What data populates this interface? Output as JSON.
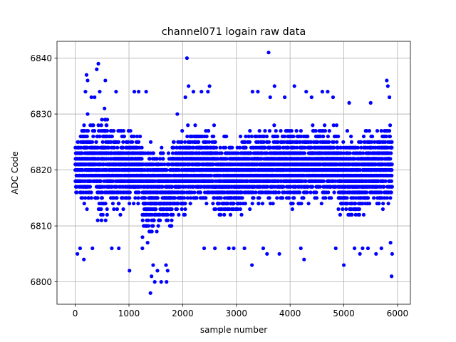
{
  "chart_data": {
    "type": "scatter",
    "title": "channel071 logain raw data",
    "xlabel": "sample number",
    "ylabel": "ADC Code",
    "xlim": [
      -340,
      6240
    ],
    "ylim": [
      6796,
      6843
    ],
    "xticks": [
      0,
      1000,
      2000,
      3000,
      4000,
      5000,
      6000
    ],
    "yticks": [
      6800,
      6810,
      6820,
      6830,
      6840
    ],
    "grid": true,
    "marker_color": "#0000ff",
    "n_points": 5900,
    "baseline_min": 6812,
    "baseline_max": 6827,
    "bands": [
      {
        "x": [
          0,
          100
        ],
        "range": [
          6814,
          6827
        ]
      },
      {
        "x": [
          100,
          400
        ],
        "range": [
          6812,
          6830
        ]
      },
      {
        "x": [
          400,
          600
        ],
        "range": [
          6809,
          6833
        ]
      },
      {
        "x": [
          600,
          900
        ],
        "range": [
          6811,
          6829
        ]
      },
      {
        "x": [
          900,
          1250
        ],
        "range": [
          6813,
          6828
        ]
      },
      {
        "x": [
          1250,
          1500
        ],
        "range": [
          6806,
          6827
        ]
      },
      {
        "x": [
          1500,
          1800
        ],
        "range": [
          6807,
          6826
        ]
      },
      {
        "x": [
          1800,
          2050
        ],
        "range": [
          6810,
          6828
        ]
      },
      {
        "x": [
          2050,
          2600
        ],
        "range": [
          6812,
          6829
        ]
      },
      {
        "x": [
          2600,
          3100
        ],
        "range": [
          6810,
          6827
        ]
      },
      {
        "x": [
          3100,
          4300
        ],
        "range": [
          6812,
          6829
        ]
      },
      {
        "x": [
          4300,
          4900
        ],
        "range": [
          6813,
          6829
        ]
      },
      {
        "x": [
          4900,
          5400
        ],
        "range": [
          6810,
          6828
        ]
      },
      {
        "x": [
          5400,
          5900
        ],
        "range": [
          6812,
          6829
        ]
      }
    ],
    "outliers": [
      {
        "x": 40,
        "y": 6805
      },
      {
        "x": 90,
        "y": 6806
      },
      {
        "x": 160,
        "y": 6804
      },
      {
        "x": 190,
        "y": 6834
      },
      {
        "x": 210,
        "y": 6837
      },
      {
        "x": 230,
        "y": 6836
      },
      {
        "x": 300,
        "y": 6833
      },
      {
        "x": 320,
        "y": 6806
      },
      {
        "x": 360,
        "y": 6833
      },
      {
        "x": 400,
        "y": 6838
      },
      {
        "x": 430,
        "y": 6839
      },
      {
        "x": 455,
        "y": 6834
      },
      {
        "x": 560,
        "y": 6836
      },
      {
        "x": 680,
        "y": 6806
      },
      {
        "x": 760,
        "y": 6834
      },
      {
        "x": 810,
        "y": 6806
      },
      {
        "x": 1010,
        "y": 6802
      },
      {
        "x": 1100,
        "y": 6834
      },
      {
        "x": 1180,
        "y": 6834
      },
      {
        "x": 1250,
        "y": 6806
      },
      {
        "x": 1320,
        "y": 6834
      },
      {
        "x": 1400,
        "y": 6798
      },
      {
        "x": 1420,
        "y": 6801
      },
      {
        "x": 1450,
        "y": 6803
      },
      {
        "x": 1480,
        "y": 6800
      },
      {
        "x": 1530,
        "y": 6802
      },
      {
        "x": 1600,
        "y": 6800
      },
      {
        "x": 1700,
        "y": 6800
      },
      {
        "x": 1720,
        "y": 6802
      },
      {
        "x": 1690,
        "y": 6803
      },
      {
        "x": 1900,
        "y": 6830
      },
      {
        "x": 2050,
        "y": 6833
      },
      {
        "x": 2080,
        "y": 6840
      },
      {
        "x": 2110,
        "y": 6835
      },
      {
        "x": 2200,
        "y": 6834
      },
      {
        "x": 2350,
        "y": 6834
      },
      {
        "x": 2470,
        "y": 6834
      },
      {
        "x": 2500,
        "y": 6835
      },
      {
        "x": 2400,
        "y": 6806
      },
      {
        "x": 2600,
        "y": 6806
      },
      {
        "x": 2860,
        "y": 6806
      },
      {
        "x": 2950,
        "y": 6806
      },
      {
        "x": 3150,
        "y": 6806
      },
      {
        "x": 3300,
        "y": 6834
      },
      {
        "x": 3290,
        "y": 6803
      },
      {
        "x": 3400,
        "y": 6834
      },
      {
        "x": 3500,
        "y": 6806
      },
      {
        "x": 3570,
        "y": 6805
      },
      {
        "x": 3600,
        "y": 6841
      },
      {
        "x": 3630,
        "y": 6833
      },
      {
        "x": 3710,
        "y": 6835
      },
      {
        "x": 3800,
        "y": 6805
      },
      {
        "x": 3900,
        "y": 6833
      },
      {
        "x": 4080,
        "y": 6835
      },
      {
        "x": 4200,
        "y": 6806
      },
      {
        "x": 4260,
        "y": 6804
      },
      {
        "x": 4300,
        "y": 6834
      },
      {
        "x": 4400,
        "y": 6833
      },
      {
        "x": 4600,
        "y": 6834
      },
      {
        "x": 4700,
        "y": 6834
      },
      {
        "x": 4800,
        "y": 6833
      },
      {
        "x": 4850,
        "y": 6806
      },
      {
        "x": 5000,
        "y": 6803
      },
      {
        "x": 5100,
        "y": 6832
      },
      {
        "x": 5200,
        "y": 6806
      },
      {
        "x": 5300,
        "y": 6805
      },
      {
        "x": 5350,
        "y": 6806
      },
      {
        "x": 5450,
        "y": 6806
      },
      {
        "x": 5500,
        "y": 6832
      },
      {
        "x": 5600,
        "y": 6805
      },
      {
        "x": 5700,
        "y": 6806
      },
      {
        "x": 5800,
        "y": 6836
      },
      {
        "x": 5820,
        "y": 6835
      },
      {
        "x": 5850,
        "y": 6833
      },
      {
        "x": 5870,
        "y": 6807
      },
      {
        "x": 5890,
        "y": 6801
      },
      {
        "x": 5900,
        "y": 6805
      }
    ]
  }
}
